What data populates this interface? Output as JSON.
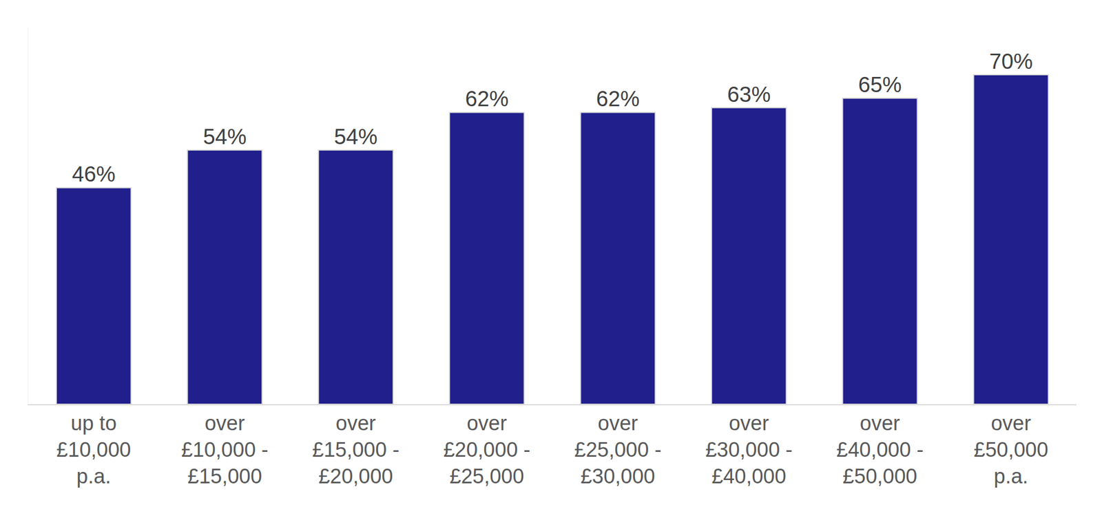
{
  "chart_data": {
    "type": "bar",
    "categories": [
      "up to\n£10,000\np.a.",
      "over\n£10,000 -\n£15,000",
      "over\n£15,000 -\n£20,000",
      "over\n£20,000 -\n£25,000",
      "over\n£25,000 -\n£30,000",
      "over\n£30,000 -\n£40,000",
      "over\n£40,000 -\n£50,000",
      "over\n£50,000\np.a."
    ],
    "values": [
      46,
      54,
      54,
      62,
      62,
      63,
      65,
      70
    ],
    "value_labels": [
      "46%",
      "54%",
      "54%",
      "62%",
      "62%",
      "63%",
      "65%",
      "70%"
    ],
    "color": "#201f8c",
    "ylim": [
      0,
      80
    ],
    "yticks": [],
    "grid": false,
    "data_labels": true,
    "tick_labels": "x"
  }
}
